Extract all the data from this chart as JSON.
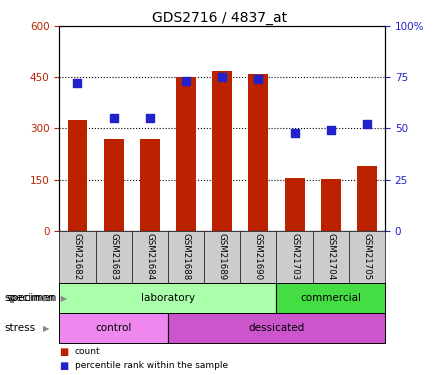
{
  "title": "GDS2716 / 4837_at",
  "samples": [
    "GSM21682",
    "GSM21683",
    "GSM21684",
    "GSM21688",
    "GSM21689",
    "GSM21690",
    "GSM21703",
    "GSM21704",
    "GSM21705"
  ],
  "counts": [
    325,
    270,
    268,
    450,
    470,
    460,
    155,
    152,
    190
  ],
  "percentile_ranks": [
    72,
    55,
    55,
    73,
    75,
    74,
    48,
    49,
    52
  ],
  "ylim_left": [
    0,
    600
  ],
  "ylim_right": [
    0,
    100
  ],
  "yticks_left": [
    0,
    150,
    300,
    450,
    600
  ],
  "yticks_right": [
    0,
    25,
    50,
    75,
    100
  ],
  "bar_color": "#bb2200",
  "dot_color": "#2222cc",
  "specimen_groups": [
    {
      "label": "laboratory",
      "start": 0,
      "end": 6,
      "color": "#aaeea a"
    },
    {
      "label": "commercial",
      "start": 6,
      "end": 9,
      "color": "#44dd44"
    }
  ],
  "stress_groups": [
    {
      "label": "control",
      "start": 0,
      "end": 3,
      "color": "#ee88ee"
    },
    {
      "label": "dessicated",
      "start": 3,
      "end": 9,
      "color": "#cc55cc"
    }
  ],
  "legend_items": [
    {
      "label": "count",
      "color": "#bb2200"
    },
    {
      "label": "percentile rank within the sample",
      "color": "#2222cc"
    }
  ],
  "specimen_label": "specimen",
  "stress_label": "stress",
  "tick_area_bg": "#cccccc"
}
